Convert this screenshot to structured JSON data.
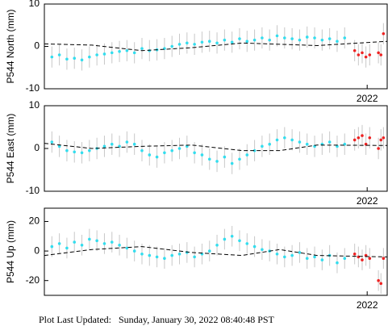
{
  "chart_data": [
    {
      "type": "scatter",
      "ylabel": "P544 North (mm)",
      "xlim": [
        2019.42,
        2022.16
      ],
      "ylim": [
        -10,
        10
      ],
      "yticks": [
        -10,
        0,
        10
      ],
      "xticks": [
        2022
      ],
      "x": [
        2019.48,
        2019.54,
        2019.6,
        2019.66,
        2019.72,
        2019.78,
        2019.84,
        2019.9,
        2019.96,
        2020.02,
        2020.08,
        2020.14,
        2020.2,
        2020.26,
        2020.32,
        2020.38,
        2020.44,
        2020.5,
        2020.56,
        2020.62,
        2020.68,
        2020.74,
        2020.8,
        2020.86,
        2020.92,
        2020.98,
        2021.04,
        2021.1,
        2021.16,
        2021.22,
        2021.28,
        2021.34,
        2021.4,
        2021.46,
        2021.52,
        2021.58,
        2021.64,
        2021.7,
        2021.76,
        2021.82
      ],
      "series": [
        {
          "color": "#33ddee",
          "error": 2.5,
          "values": [
            -2.5,
            -2,
            -3,
            -2.8,
            -3.2,
            -2.5,
            -2,
            -1.8,
            -1.5,
            -1.2,
            -1,
            -1.5,
            -0.5,
            -1,
            -0.8,
            -0.5,
            0,
            0.5,
            0.8,
            0.5,
            1,
            1.2,
            0.8,
            1.5,
            1,
            1.8,
            1.2,
            1.5,
            2,
            1.5,
            2.5,
            2,
            1.8,
            1.5,
            2.2,
            2,
            1.5,
            1.8,
            1.2,
            2
          ]
        },
        {
          "color": "#ee2222",
          "error": 2.5,
          "x": [
            2021.9,
            2021.93,
            2021.96,
            2021.99,
            2022.02,
            2022.09,
            2022.11,
            2022.13
          ],
          "values": [
            -1,
            -2,
            -1.5,
            -2.5,
            -2,
            -1.5,
            -2,
            3
          ]
        },
        {
          "color": "#000000",
          "dashed": true,
          "x": [
            2019.42,
            2019.8,
            2020.2,
            2020.6,
            2021.0,
            2021.3,
            2021.6,
            2022.16
          ],
          "values": [
            0.6,
            0.3,
            -1,
            -0.3,
            0.8,
            0.5,
            0.2,
            1.2
          ]
        }
      ]
    },
    {
      "type": "scatter",
      "ylabel": "P544 East (mm)",
      "xlim": [
        2019.42,
        2022.16
      ],
      "ylim": [
        -10,
        10
      ],
      "yticks": [
        -10,
        0,
        10
      ],
      "xticks": [
        2022
      ],
      "x": [
        2019.48,
        2019.54,
        2019.6,
        2019.66,
        2019.72,
        2019.78,
        2019.84,
        2019.9,
        2019.96,
        2020.02,
        2020.08,
        2020.14,
        2020.2,
        2020.26,
        2020.32,
        2020.38,
        2020.44,
        2020.5,
        2020.56,
        2020.62,
        2020.68,
        2020.74,
        2020.8,
        2020.86,
        2020.92,
        2020.98,
        2021.04,
        2021.1,
        2021.16,
        2021.22,
        2021.28,
        2021.34,
        2021.4,
        2021.46,
        2021.52,
        2021.58,
        2021.64,
        2021.7,
        2021.76,
        2021.82
      ],
      "series": [
        {
          "color": "#33ddee",
          "error": 2.5,
          "values": [
            1.5,
            0.5,
            -0.5,
            -0.8,
            -1,
            -0.5,
            0,
            0.5,
            1,
            0.5,
            1.5,
            1,
            -0.5,
            -1.5,
            -2,
            -1,
            -0.5,
            0,
            0.5,
            -1,
            -1.5,
            -2.5,
            -3,
            -2,
            -3.5,
            -2.5,
            -1.5,
            -0.5,
            0.5,
            1,
            2,
            2.5,
            2,
            1.5,
            1,
            0.5,
            1,
            1.5,
            0.5,
            1
          ]
        },
        {
          "color": "#ee2222",
          "error": 2.5,
          "x": [
            2021.9,
            2021.93,
            2021.96,
            2021.99,
            2022.02,
            2022.09,
            2022.11,
            2022.13
          ],
          "values": [
            2,
            2.5,
            3,
            1,
            2.5,
            0,
            2,
            2.5
          ]
        },
        {
          "color": "#000000",
          "dashed": true,
          "x": [
            2019.42,
            2019.8,
            2020.2,
            2020.6,
            2021.0,
            2021.3,
            2021.6,
            2022.16
          ],
          "values": [
            1.2,
            0,
            0.5,
            0.8,
            -0.5,
            -0.5,
            0.8,
            0.7
          ]
        }
      ]
    },
    {
      "type": "scatter",
      "ylabel": "P544 Up (mm)",
      "xlim": [
        2019.42,
        2022.16
      ],
      "ylim": [
        -30,
        29
      ],
      "yticks": [
        -20,
        0,
        20
      ],
      "xticks": [
        2022
      ],
      "x": [
        2019.48,
        2019.54,
        2019.6,
        2019.66,
        2019.72,
        2019.78,
        2019.84,
        2019.9,
        2019.96,
        2020.02,
        2020.08,
        2020.14,
        2020.2,
        2020.26,
        2020.32,
        2020.38,
        2020.44,
        2020.5,
        2020.56,
        2020.62,
        2020.68,
        2020.74,
        2020.8,
        2020.86,
        2020.92,
        2020.98,
        2021.04,
        2021.1,
        2021.16,
        2021.22,
        2021.28,
        2021.34,
        2021.4,
        2021.46,
        2021.52,
        2021.58,
        2021.64,
        2021.7,
        2021.76,
        2021.82
      ],
      "series": [
        {
          "color": "#33ddee",
          "error": 7,
          "values": [
            3,
            5,
            2,
            6,
            4,
            8,
            7,
            5,
            6,
            4,
            2,
            0,
            -2,
            -3,
            -4,
            -5,
            -3,
            -2,
            -1,
            -4,
            -2,
            0,
            4,
            8,
            10,
            7,
            5,
            3,
            1,
            0,
            -2,
            -4,
            -3,
            -1,
            -5,
            -4,
            -6,
            -3,
            -8,
            -5
          ]
        },
        {
          "color": "#ee2222",
          "error": 7,
          "x": [
            2021.9,
            2021.93,
            2021.96,
            2021.99,
            2022.02,
            2022.09,
            2022.11,
            2022.13
          ],
          "values": [
            -2,
            -4,
            -6,
            -3,
            -5,
            -20,
            -22,
            -5
          ]
        },
        {
          "color": "#000000",
          "dashed": true,
          "x": [
            2019.42,
            2019.8,
            2020.2,
            2020.6,
            2021.0,
            2021.3,
            2021.6,
            2022.16
          ],
          "values": [
            -3,
            1,
            3,
            -1,
            -3,
            1,
            -3,
            -4
          ]
        }
      ]
    }
  ],
  "footer": "Plot Last Updated:   Sunday, January 30, 2022 08:40:48 PST"
}
